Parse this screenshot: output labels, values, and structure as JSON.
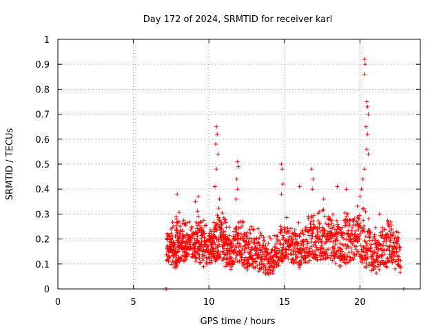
{
  "chart_data": {
    "type": "scatter",
    "title": "Day 172 of 2024, SRMTID for receiver karl",
    "xlabel": "GPS time / hours",
    "ylabel": "SRMTID / TECUs",
    "xlim": [
      0,
      24
    ],
    "ylim": [
      0,
      1
    ],
    "xticks": [
      0,
      5,
      10,
      15,
      20
    ],
    "yticks": [
      0,
      0.1,
      0.2,
      0.3,
      0.4,
      0.5,
      0.6,
      0.7,
      0.8,
      0.9,
      1
    ],
    "xtick_labels": [
      "0",
      "5",
      "10",
      "15",
      "20"
    ],
    "ytick_labels": [
      "0",
      "0.1",
      "0.2",
      "0.3",
      "0.4",
      "0.5",
      "0.6",
      "0.7",
      "0.8",
      "0.9",
      "1"
    ],
    "grid": true,
    "marker": "+",
    "color": "#ff0000",
    "series": [
      {
        "name": "SRMTID",
        "baseline": [
          [
            7.1,
            0.0
          ],
          [
            7.2,
            0.0
          ],
          [
            22.9,
            0.0
          ]
        ],
        "envelope": [
          [
            7.2,
            0.13,
            0.2
          ],
          [
            7.5,
            0.12,
            0.21
          ],
          [
            7.8,
            0.11,
            0.24
          ],
          [
            8.0,
            0.12,
            0.26
          ],
          [
            8.3,
            0.13,
            0.22
          ],
          [
            8.6,
            0.14,
            0.21
          ],
          [
            9.0,
            0.13,
            0.25
          ],
          [
            9.3,
            0.14,
            0.26
          ],
          [
            9.6,
            0.12,
            0.23
          ],
          [
            10.0,
            0.11,
            0.2
          ],
          [
            10.3,
            0.13,
            0.23
          ],
          [
            10.6,
            0.15,
            0.27
          ],
          [
            10.9,
            0.14,
            0.25
          ],
          [
            11.2,
            0.11,
            0.2
          ],
          [
            11.5,
            0.1,
            0.18
          ],
          [
            11.9,
            0.12,
            0.22
          ],
          [
            12.3,
            0.11,
            0.21
          ],
          [
            12.7,
            0.1,
            0.19
          ],
          [
            13.1,
            0.11,
            0.2
          ],
          [
            13.5,
            0.09,
            0.17
          ],
          [
            13.9,
            0.08,
            0.15
          ],
          [
            14.3,
            0.09,
            0.16
          ],
          [
            14.7,
            0.12,
            0.22
          ],
          [
            15.1,
            0.13,
            0.24
          ],
          [
            15.5,
            0.12,
            0.22
          ],
          [
            15.9,
            0.11,
            0.21
          ],
          [
            16.3,
            0.13,
            0.23
          ],
          [
            16.7,
            0.14,
            0.25
          ],
          [
            17.1,
            0.13,
            0.24
          ],
          [
            17.5,
            0.15,
            0.26
          ],
          [
            17.9,
            0.14,
            0.25
          ],
          [
            18.3,
            0.13,
            0.24
          ],
          [
            18.7,
            0.12,
            0.23
          ],
          [
            19.1,
            0.13,
            0.25
          ],
          [
            19.5,
            0.14,
            0.27
          ],
          [
            19.9,
            0.15,
            0.28
          ],
          [
            20.3,
            0.12,
            0.26
          ],
          [
            20.7,
            0.1,
            0.22
          ],
          [
            21.1,
            0.09,
            0.2
          ],
          [
            21.5,
            0.1,
            0.21
          ],
          [
            21.9,
            0.12,
            0.22
          ],
          [
            22.3,
            0.11,
            0.21
          ],
          [
            22.7,
            0.09,
            0.16
          ]
        ],
        "spikes": [
          [
            7.9,
            0.38
          ],
          [
            9.1,
            0.35
          ],
          [
            9.3,
            0.37
          ],
          [
            10.5,
            0.65
          ],
          [
            10.55,
            0.62
          ],
          [
            10.45,
            0.58
          ],
          [
            10.6,
            0.54
          ],
          [
            10.5,
            0.48
          ],
          [
            10.4,
            0.41
          ],
          [
            10.7,
            0.36
          ],
          [
            11.9,
            0.51
          ],
          [
            11.95,
            0.49
          ],
          [
            11.85,
            0.44
          ],
          [
            11.9,
            0.4
          ],
          [
            11.8,
            0.36
          ],
          [
            14.8,
            0.5
          ],
          [
            14.85,
            0.48
          ],
          [
            14.9,
            0.42
          ],
          [
            14.8,
            0.38
          ],
          [
            16.0,
            0.41
          ],
          [
            16.8,
            0.48
          ],
          [
            16.9,
            0.44
          ],
          [
            16.85,
            0.4
          ],
          [
            17.6,
            0.36
          ],
          [
            18.5,
            0.41
          ],
          [
            19.1,
            0.4
          ],
          [
            20.3,
            0.92
          ],
          [
            20.35,
            0.9
          ],
          [
            20.3,
            0.86
          ],
          [
            20.45,
            0.75
          ],
          [
            20.5,
            0.73
          ],
          [
            20.55,
            0.7
          ],
          [
            20.4,
            0.65
          ],
          [
            20.5,
            0.62
          ],
          [
            20.45,
            0.56
          ],
          [
            20.55,
            0.54
          ],
          [
            20.3,
            0.48
          ],
          [
            20.2,
            0.44
          ],
          [
            20.1,
            0.4
          ],
          [
            20.0,
            0.37
          ],
          [
            21.3,
            0.3
          ],
          [
            22.1,
            0.24
          ]
        ]
      }
    ]
  }
}
